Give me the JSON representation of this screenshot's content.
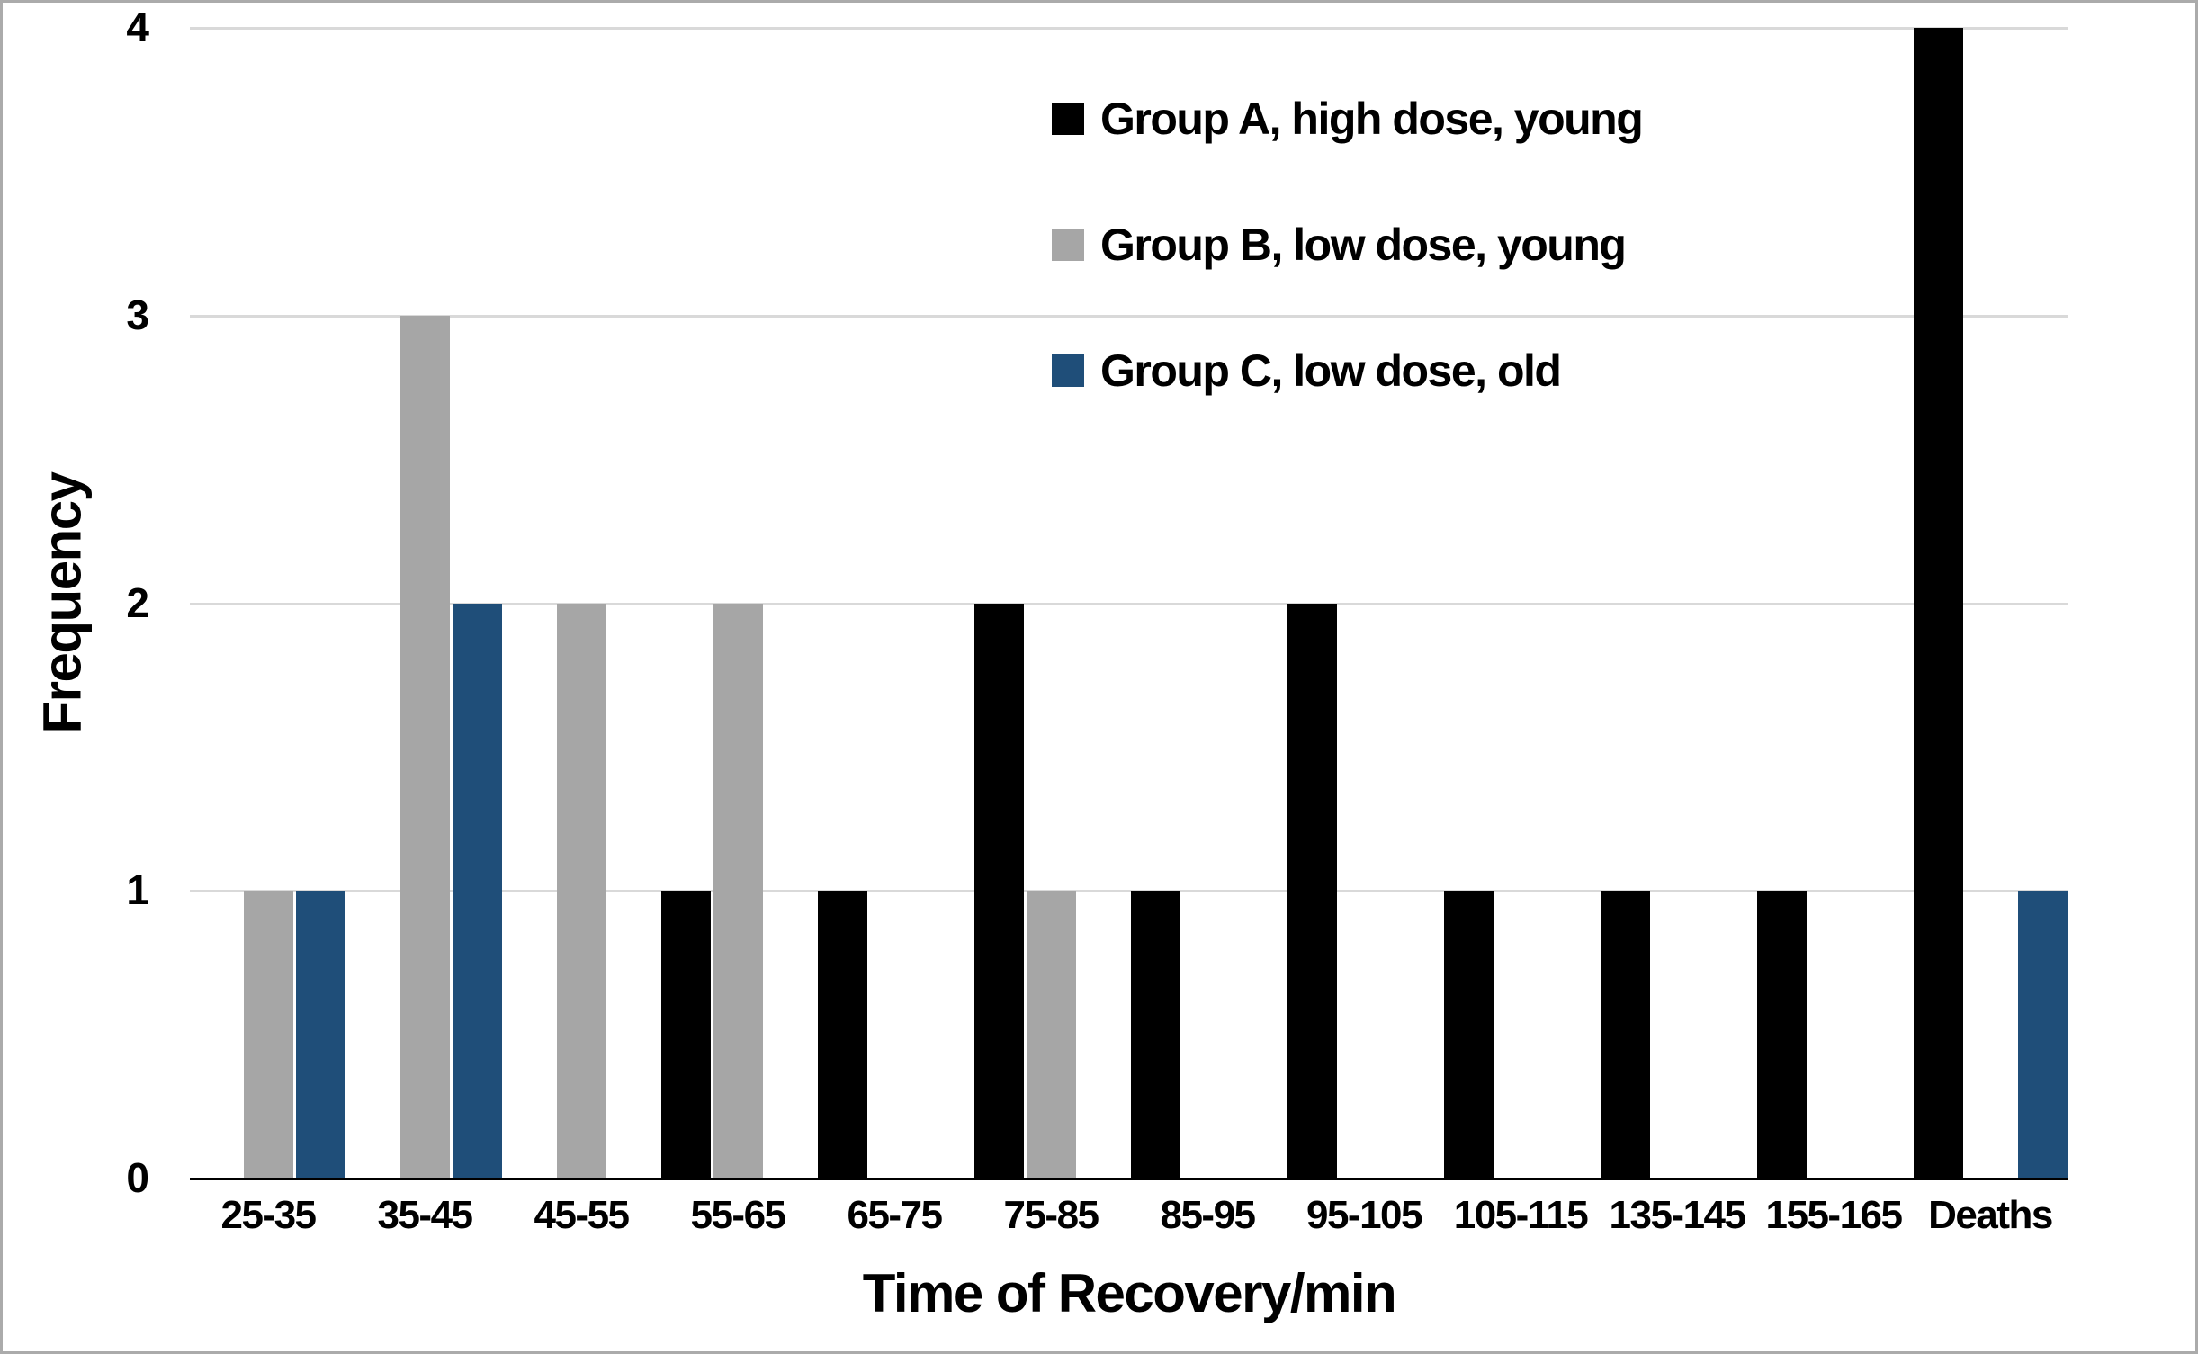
{
  "chart_data": {
    "type": "bar",
    "title": "",
    "xlabel": "Time of Recovery/min",
    "ylabel": "Frequency",
    "ylim": [
      0,
      4
    ],
    "yticks": [
      0,
      1,
      2,
      3,
      4
    ],
    "grid": true,
    "legend_position": "top-right-inside",
    "categories": [
      "25-35",
      "35-45",
      "45-55",
      "55-65",
      "65-75",
      "75-85",
      "85-95",
      "95-105",
      "105-115",
      "135-145",
      "155-165",
      "Deaths"
    ],
    "series": [
      {
        "name": "Group A, high dose, young",
        "color": "#000000",
        "values": [
          null,
          null,
          null,
          1,
          1,
          2,
          1,
          2,
          1,
          1,
          1,
          4
        ]
      },
      {
        "name": "Group B, low dose, young",
        "color": "#A6A6A6",
        "values": [
          1,
          3,
          2,
          2,
          null,
          1,
          null,
          null,
          null,
          null,
          null,
          null
        ]
      },
      {
        "name": "Group C, low dose, old",
        "color": "#1F4E79",
        "values": [
          1,
          2,
          null,
          null,
          null,
          null,
          null,
          null,
          null,
          null,
          null,
          1
        ]
      }
    ],
    "style": {
      "background_color": "#FFFFFF",
      "gridline_color": "#D9D9D9",
      "axis_line_color": "#000000",
      "frame_border_color": "#ABABAB",
      "text_color": "#000000"
    }
  }
}
